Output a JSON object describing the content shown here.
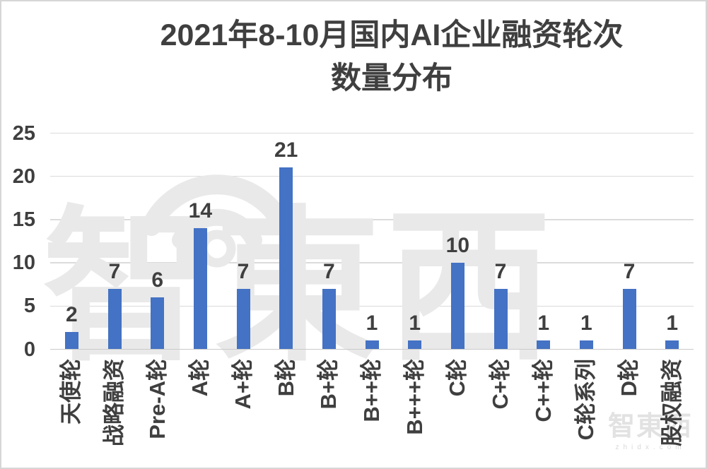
{
  "frame": {
    "background": "#ffffff",
    "border_color": "#d6d6d6"
  },
  "title": {
    "line1": "2021年8-10月国内AI企业融资轮次",
    "line2": "数量分布"
  },
  "chart_data": {
    "type": "bar",
    "title": "2021年8-10月国内AI企业融资轮次数量分布",
    "categories": [
      "天使轮",
      "战略融资",
      "Pre-A轮",
      "A轮",
      "A+轮",
      "B轮",
      "B+轮",
      "B++轮",
      "B+++轮",
      "C轮",
      "C+轮",
      "C++轮",
      "C轮系列",
      "D轮",
      "股权融资"
    ],
    "values": [
      2,
      7,
      6,
      14,
      7,
      21,
      7,
      1,
      1,
      10,
      7,
      1,
      1,
      7,
      1
    ],
    "y_ticks": [
      0,
      5,
      10,
      15,
      20,
      25
    ],
    "ylim": [
      0,
      25
    ],
    "xlabel": "",
    "ylabel": "",
    "grid": true,
    "legend": "none",
    "data_labels": true,
    "bar_color": "#4472C4",
    "text_color": "#3F3F3F",
    "gridline_color": "#DBDBDB",
    "axis_line_color": "#C9C9C9"
  },
  "watermark": {
    "main_text": "智東西",
    "corner_text": "智東西",
    "corner_subtext": "zhidx.com",
    "color": "#E9E9E9"
  }
}
